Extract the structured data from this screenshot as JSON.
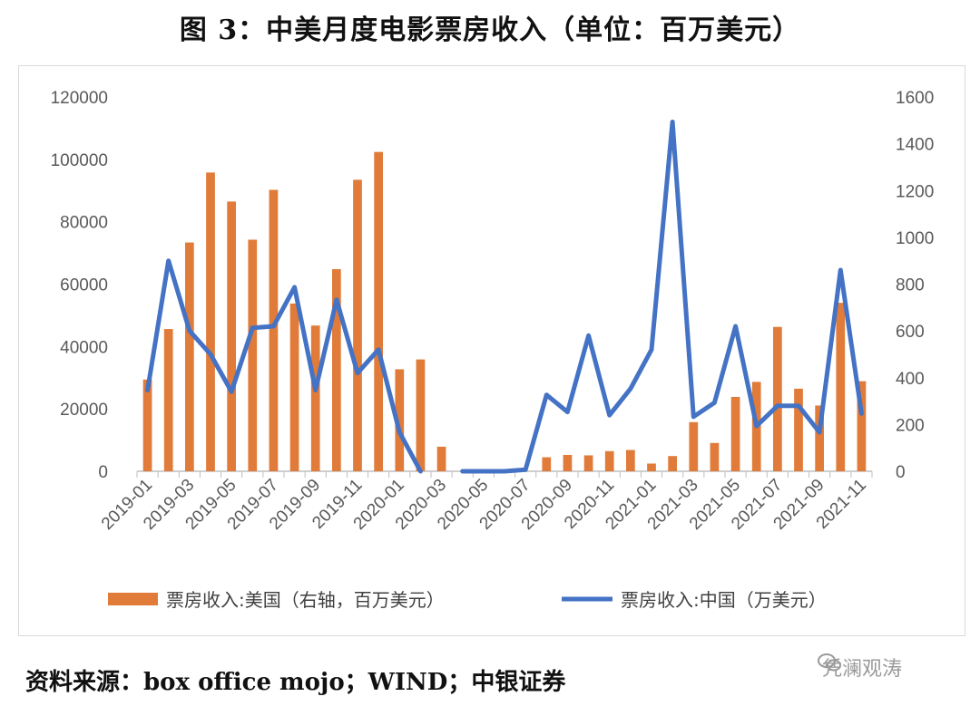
{
  "title": "图 3：中美月度电影票房收入（单位：百万美元）",
  "source": "资料来源：box office mojo；WIND；中银证券",
  "watermark": "凭澜观涛",
  "chart_data": {
    "type": "bar+line",
    "categories": [
      "2019-01",
      "2019-02",
      "2019-03",
      "2019-04",
      "2019-05",
      "2019-06",
      "2019-07",
      "2019-08",
      "2019-09",
      "2019-10",
      "2019-11",
      "2019-12",
      "2020-01",
      "2020-02",
      "2020-03",
      "2020-04",
      "2020-05",
      "2020-06",
      "2020-07",
      "2020-08",
      "2020-09",
      "2020-10",
      "2020-11",
      "2020-12",
      "2021-01",
      "2021-02",
      "2021-03",
      "2021-04",
      "2021-05",
      "2021-06",
      "2021-07",
      "2021-08",
      "2021-09",
      "2021-10",
      "2021-11"
    ],
    "x_tick_labels": [
      "2019-01",
      "2019-03",
      "2019-05",
      "2019-07",
      "2019-09",
      "2019-11",
      "2020-01",
      "2020-03",
      "2020-05",
      "2020-07",
      "2020-09",
      "2020-11",
      "2021-01",
      "2021-03",
      "2021-05",
      "2021-07",
      "2021-09",
      "2021-11"
    ],
    "left_axis": {
      "ylim": [
        0,
        120000
      ],
      "ticks": [
        "0",
        "20000",
        "40000",
        "60000",
        "80000",
        "100000",
        "120000"
      ]
    },
    "right_axis": {
      "ylim": [
        0,
        1600
      ],
      "ticks": [
        "0",
        "200",
        "400",
        "600",
        "800",
        "1000",
        "1200",
        "1400",
        "1600"
      ]
    },
    "series": [
      {
        "name": "票房收入:美国（右轴，百万美元）",
        "type": "bar",
        "axis": "right",
        "color": "#e07b39",
        "values": [
          392,
          608,
          978,
          1277,
          1153,
          990,
          1203,
          717,
          623,
          864,
          1246,
          1365,
          436,
          478,
          105,
          0,
          0,
          0,
          0,
          60,
          70,
          68,
          86,
          91,
          33,
          65,
          210,
          121,
          318,
          382,
          617,
          353,
          281,
          720,
          385
        ]
      },
      {
        "name": "票房收入:中国（万美元）",
        "type": "line",
        "axis": "left",
        "color": "#4472c4",
        "values": [
          26000,
          67500,
          45000,
          37500,
          25500,
          46000,
          46500,
          59000,
          26000,
          55000,
          31500,
          39000,
          12500,
          0,
          null,
          0,
          0,
          0,
          500,
          24500,
          19000,
          43500,
          18000,
          26500,
          39000,
          112000,
          17500,
          22000,
          46500,
          14500,
          21000,
          21000,
          12500,
          64500,
          18500
        ]
      }
    ],
    "legend_position": "bottom",
    "grid": false
  }
}
